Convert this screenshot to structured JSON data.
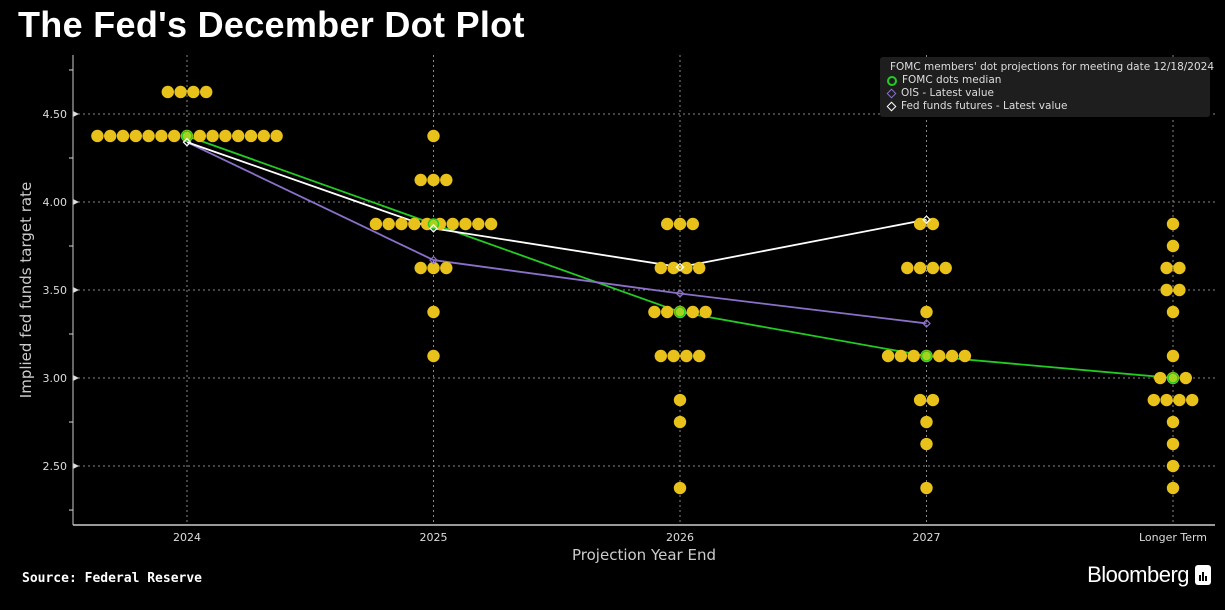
{
  "title": "The Fed's December Dot Plot",
  "source": "Source: Federal Reserve",
  "brand": "Bloomberg",
  "colors": {
    "dots": "#e8c21a",
    "median": "#22cc22",
    "ois": "#8a70c8",
    "futures": "#ffffff",
    "grid": "#888888"
  },
  "chart_data": {
    "type": "scatter",
    "title": "The Fed's December Dot Plot",
    "xlabel": "Projection Year End",
    "ylabel": "Implied fed funds target rate",
    "categories": [
      "2024",
      "2025",
      "2026",
      "2027",
      "Longer Term"
    ],
    "ylim": [
      2.165,
      4.835
    ],
    "yticks": [
      "2.50",
      "3.00",
      "3.50",
      "4.00",
      "4.50"
    ],
    "grid": true,
    "legend_position": "top-right",
    "legend": [
      "FOMC members' dot projections for meeting date 12/18/2024",
      "FOMC dots median",
      "OIS - Latest value",
      "Fed funds futures - Latest value"
    ],
    "dots": [
      [
        [
          4.625,
          4
        ],
        [
          4.375,
          15
        ]
      ],
      [
        [
          4.375,
          1
        ],
        [
          4.125,
          3
        ],
        [
          3.875,
          10
        ],
        [
          3.625,
          3
        ],
        [
          3.375,
          1
        ],
        [
          3.125,
          1
        ]
      ],
      [
        [
          3.875,
          3
        ],
        [
          3.625,
          4
        ],
        [
          3.375,
          5
        ],
        [
          3.125,
          4
        ],
        [
          2.875,
          1
        ],
        [
          2.75,
          1
        ],
        [
          2.375,
          1
        ]
      ],
      [
        [
          3.875,
          2
        ],
        [
          3.625,
          4
        ],
        [
          3.375,
          1
        ],
        [
          3.125,
          7
        ],
        [
          2.875,
          2
        ],
        [
          2.75,
          1
        ],
        [
          2.625,
          1
        ],
        [
          2.375,
          1
        ]
      ],
      [
        [
          3.875,
          1
        ],
        [
          3.75,
          1
        ],
        [
          3.625,
          2
        ],
        [
          3.5,
          2
        ],
        [
          3.375,
          1
        ],
        [
          3.125,
          1
        ],
        [
          3.0,
          3
        ],
        [
          2.875,
          4
        ],
        [
          2.75,
          1
        ],
        [
          2.625,
          1
        ],
        [
          2.5,
          1
        ],
        [
          2.375,
          1
        ]
      ]
    ],
    "series": [
      {
        "name": "FOMC dots median",
        "values": [
          4.375,
          3.875,
          3.375,
          3.125,
          3.0
        ]
      },
      {
        "name": "OIS - Latest value",
        "values": [
          4.34,
          3.67,
          3.48,
          3.31,
          null
        ]
      },
      {
        "name": "Fed funds futures - Latest value",
        "values": [
          4.34,
          3.85,
          3.63,
          3.9,
          null
        ]
      }
    ]
  }
}
